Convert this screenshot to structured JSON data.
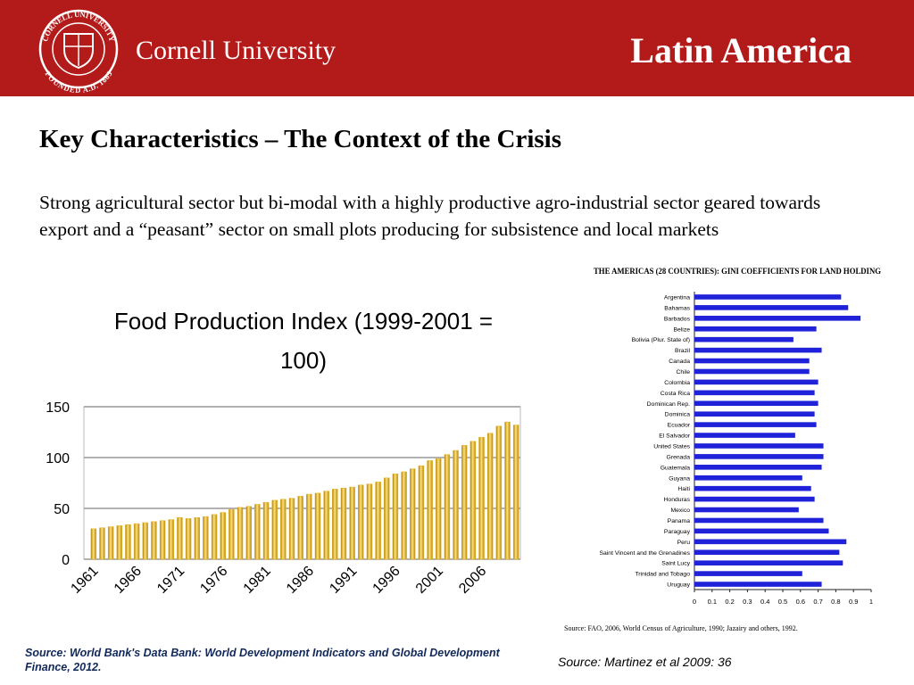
{
  "header": {
    "seal_top": "CORNELL UNIVERSITY",
    "seal_bottom": "FOUNDED A.D. 1865",
    "logo_text": "Cornell University",
    "title": "Latin America"
  },
  "heading": "Key Characteristics – The Context of the Crisis",
  "paragraph": "Strong agricultural sector but bi-modal with a highly productive agro-industrial sector geared towards export and a “peasant” sector on small plots producing for subsistence and local markets",
  "chart_data": [
    {
      "type": "bar",
      "title": "Food Production Index (1999-2001 = 100)",
      "categories": [
        "1961",
        null,
        null,
        null,
        null,
        "1966",
        null,
        null,
        null,
        null,
        "1971",
        null,
        null,
        null,
        null,
        "1976",
        null,
        null,
        null,
        null,
        "1981",
        null,
        null,
        null,
        null,
        "1986",
        null,
        null,
        null,
        null,
        "1991",
        null,
        null,
        null,
        null,
        "1996",
        null,
        null,
        null,
        null,
        "2001",
        null,
        null,
        null,
        null,
        "2006",
        null,
        null,
        null,
        null
      ],
      "values": [
        30,
        31,
        32,
        33,
        34,
        35,
        36,
        37,
        38,
        39,
        41,
        40,
        41,
        42,
        44,
        46,
        49,
        51,
        52,
        54,
        56,
        58,
        59,
        60,
        62,
        64,
        65,
        67,
        69,
        70,
        71,
        73,
        74,
        76,
        80,
        84,
        86,
        89,
        92,
        97,
        99,
        103,
        107,
        112,
        116,
        120,
        124,
        131,
        135,
        132
      ],
      "color": "#e6b422",
      "ylim": [
        0,
        150
      ],
      "yticks": [
        0,
        50,
        100,
        150
      ],
      "grid": true,
      "source": "Source:  World Bank's Data Bank: World Development Indicators and Global Development Finance, 2012."
    },
    {
      "type": "barh",
      "title": "THE AMERICAS (28 COUNTRIES): GINI COEFFICIENTS FOR LAND HOLDING",
      "categories": [
        "Argentina",
        "Bahamas",
        "Barbados",
        "Belize",
        "Bolivia (Plur. State of)",
        "Brazil",
        "Canada",
        "Chile",
        "Colombia",
        "Costa Rica",
        "Dominican Rep.",
        "Dominica",
        "Ecuador",
        "El Salvador",
        "United States",
        "Grenada",
        "Guatemala",
        "Guyana",
        "Haiti",
        "Honduras",
        "Mexico",
        "Panama",
        "Paraguay",
        "Peru",
        "Saint Vincent and the Grenadines",
        "Saint Lucy",
        "Trinidad and Tobago",
        "Uruguay"
      ],
      "values": [
        0.83,
        0.87,
        0.94,
        0.69,
        0.56,
        0.72,
        0.65,
        0.65,
        0.7,
        0.68,
        0.7,
        0.68,
        0.69,
        0.57,
        0.73,
        0.73,
        0.72,
        0.61,
        0.66,
        0.68,
        0.59,
        0.73,
        0.76,
        0.86,
        0.82,
        0.84,
        0.61,
        0.72
      ],
      "color": "#1f22d8",
      "xlim": [
        0,
        1
      ],
      "xticks": [
        0,
        0.1,
        0.2,
        0.3,
        0.4,
        0.5,
        0.6,
        0.7,
        0.8,
        0.9,
        1
      ],
      "note": "Source: FAO, 2006, World Census of Agriculture, 1990; Jazairy and others, 1992.",
      "source": "Source: Martinez et al 2009: 36"
    }
  ]
}
